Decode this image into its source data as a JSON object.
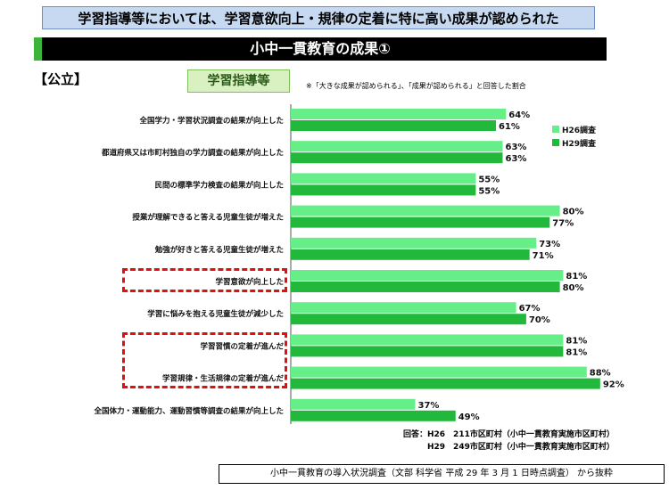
{
  "banner": "学習指導等においては、学習意欲向上・規律の定着に特に高い成果が認められた",
  "title": "小中一貫教育の成果①",
  "kind_label": "【公立】",
  "section_label": "学習指導等",
  "note": "※「大きな成果が認められる」、「成果が認められる」と回答した割合",
  "answer": {
    "line1": "回答：H26　211市区町村（小中一貫教育実施市区町村）",
    "line2": "H29　249市区町村（小中一貫教育実施市区町村）"
  },
  "source": "小中一貫教育の導入状況調査（文部 科学省 平成 29 年 3 月 1 日時点調査） から抜粋",
  "colors": {
    "h26": "#66ee88",
    "h29": "#22b83c"
  },
  "chart_data": {
    "type": "bar",
    "orientation": "horizontal",
    "categories": [
      "全国学力・学習状況調査の結果が向上した",
      "都道府県又は市町村独自の学力調査の結果が向上した",
      "民間の標準学力検査の結果が向上した",
      "授業が理解できると答える児童生徒が増えた",
      "勉強が好きと答える児童生徒が増えた",
      "学習意欲が向上した",
      "学習に悩みを抱える児童生徒が減少した",
      "学習習慣の定着が進んだ",
      "学習規律・生活規律の定着が進んだ",
      "全国体力・運動能力、運動習慣等調査の結果が向上した"
    ],
    "series": [
      {
        "name": "H26調査",
        "values": [
          64,
          63,
          55,
          80,
          73,
          81,
          67,
          81,
          88,
          37
        ],
        "labels": [
          "64%",
          "63%",
          "55%",
          "80%",
          "73%",
          "81%",
          "67%",
          "81%",
          "88%",
          "37%"
        ]
      },
      {
        "name": "H29調査",
        "values": [
          61,
          63,
          55,
          77,
          71,
          80,
          70,
          81,
          92,
          49
        ],
        "labels": [
          "61%",
          "63%",
          "55%",
          "77%",
          "71%",
          "80%",
          "70%",
          "81%",
          "92%",
          "49%"
        ]
      }
    ],
    "xlim": [
      0,
      100
    ],
    "legend": "top-right",
    "highlighted": [
      "学習意欲が向上した",
      "学習習慣の定着が進んだ",
      "学習規律・生活規律の定着が進んだ"
    ]
  }
}
